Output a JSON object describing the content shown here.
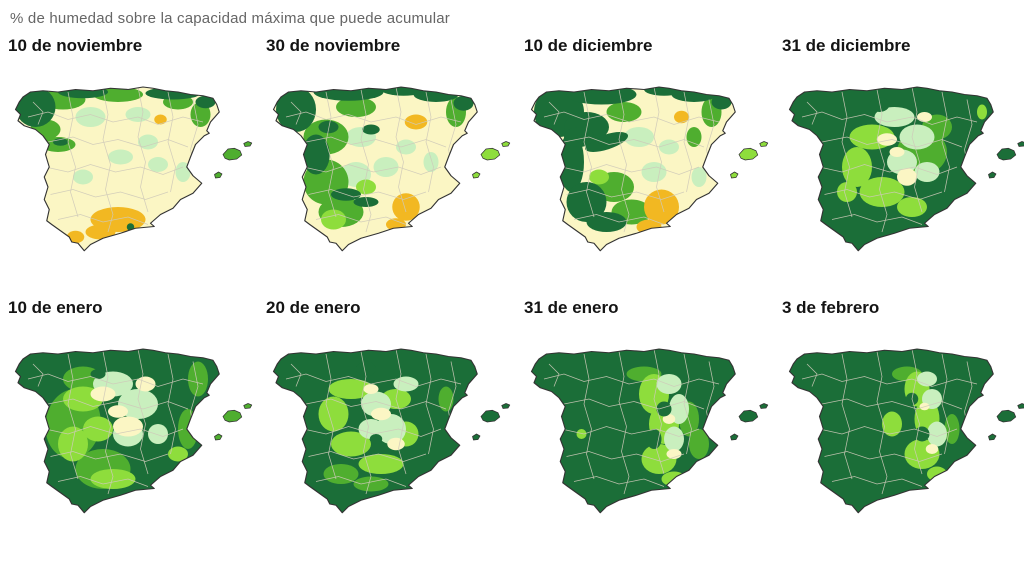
{
  "title": "% de humedad sobre la capacidad máxima que puede acumular",
  "palette": {
    "d": "#1b6e38",
    "g": "#4fae2f",
    "b": "#8edd3c",
    "m": "#c9efbe",
    "y": "#fbf6c4",
    "o": "#f2b822",
    "coast_outline": "#333333",
    "province_border": "#cfcaba",
    "ocean": "#ffffff",
    "title_color": "#666666",
    "label_color": "#141414"
  },
  "legend_note": "d=saturado (verde oscuro), g=alto, b=medio-alto, m=medio, y=bajo, o=muy seco",
  "maps": [
    {
      "label": "10 de noviembre",
      "base": "y",
      "islands": "g",
      "blobs": [
        [
          "m",
          33,
          22,
          6,
          4
        ],
        [
          "m",
          52,
          21,
          5,
          3
        ],
        [
          "m",
          45,
          38,
          5,
          3
        ],
        [
          "m",
          60,
          41,
          4,
          3
        ],
        [
          "m",
          30,
          46,
          4,
          3
        ],
        [
          "m",
          70,
          44,
          3,
          4
        ],
        [
          "m",
          56,
          32,
          4,
          3
        ],
        [
          "g",
          22,
          15,
          9,
          4
        ],
        [
          "g",
          15,
          27,
          6,
          4
        ],
        [
          "g",
          44,
          13,
          10,
          3
        ],
        [
          "g",
          20,
          33,
          7,
          3
        ],
        [
          "g",
          77,
          21,
          4,
          5
        ],
        [
          "g",
          68,
          16,
          6,
          3
        ],
        [
          "d",
          11,
          18,
          8,
          8
        ],
        [
          "d",
          30,
          12,
          10,
          2.5
        ],
        [
          "d",
          66,
          12.5,
          11,
          2.5
        ],
        [
          "d",
          79,
          16,
          4,
          2.5
        ],
        [
          "d",
          21,
          32,
          3,
          1.5
        ],
        [
          "o",
          61,
          23,
          2.5,
          2
        ],
        [
          "o",
          44,
          63,
          11,
          5
        ],
        [
          "o",
          37,
          68,
          6,
          3
        ],
        [
          "o",
          27,
          70,
          3.5,
          2.5
        ],
        [
          "d",
          49,
          66,
          1.5,
          1.5
        ]
      ]
    },
    {
      "label": "30 de noviembre",
      "base": "y",
      "islands": "b",
      "blobs": [
        [
          "m",
          38,
          30,
          6,
          4
        ],
        [
          "m",
          48,
          42,
          5,
          4
        ],
        [
          "m",
          36,
          45,
          6,
          5
        ],
        [
          "m",
          56,
          34,
          4,
          3
        ],
        [
          "m",
          66,
          40,
          3,
          4
        ],
        [
          "g",
          24,
          30,
          9,
          7
        ],
        [
          "g",
          24,
          48,
          9,
          9
        ],
        [
          "g",
          30,
          60,
          9,
          6
        ],
        [
          "g",
          36,
          18,
          8,
          4
        ],
        [
          "g",
          76,
          20,
          4,
          6
        ],
        [
          "b",
          27,
          63,
          5,
          4
        ],
        [
          "b",
          40,
          50,
          4,
          3
        ],
        [
          "d",
          12,
          19,
          8,
          9
        ],
        [
          "d",
          33,
          12,
          14,
          3.5
        ],
        [
          "d",
          55,
          11,
          9,
          2.5
        ],
        [
          "d",
          68,
          13,
          9,
          3
        ],
        [
          "d",
          79,
          16.5,
          4,
          3
        ],
        [
          "d",
          20,
          37,
          5.5,
          8
        ],
        [
          "d",
          32,
          53,
          6,
          2.5
        ],
        [
          "d",
          40,
          56,
          5,
          2
        ],
        [
          "d",
          42,
          27,
          3.5,
          2
        ],
        [
          "d",
          25,
          26,
          4,
          2.5
        ],
        [
          "o",
          60,
          24,
          4.5,
          3
        ],
        [
          "o",
          56,
          58,
          5.5,
          5.5
        ],
        [
          "o",
          52,
          65,
          4,
          2.5
        ]
      ]
    },
    {
      "label": "10 de diciembre",
      "base": "y",
      "islands": "b",
      "blobs": [
        [
          "m",
          46,
          30,
          6,
          4
        ],
        [
          "m",
          52,
          44,
          5,
          4
        ],
        [
          "m",
          58,
          34,
          4,
          3
        ],
        [
          "m",
          70,
          46,
          3,
          4
        ],
        [
          "g",
          40,
          20,
          7,
          4
        ],
        [
          "g",
          36,
          50,
          8,
          6
        ],
        [
          "g",
          43,
          60,
          8,
          5
        ],
        [
          "g",
          75,
          20,
          4,
          6
        ],
        [
          "g",
          68,
          30,
          3,
          4
        ],
        [
          "b",
          30,
          46,
          4,
          3
        ],
        [
          "d",
          14,
          20,
          10,
          10
        ],
        [
          "d",
          31,
          13,
          14,
          4
        ],
        [
          "d",
          56,
          11,
          8,
          2.5
        ],
        [
          "d",
          68,
          13,
          9,
          3
        ],
        [
          "d",
          79,
          16,
          4,
          3
        ],
        [
          "d",
          25,
          26,
          9,
          6
        ],
        [
          "d",
          19,
          40,
          5,
          12
        ],
        [
          "d",
          33,
          32,
          9,
          3,
          -18
        ],
        [
          "d",
          25,
          56,
          8,
          8
        ],
        [
          "d",
          33,
          64,
          8,
          4
        ],
        [
          "d",
          22,
          30,
          6,
          4
        ],
        [
          "o",
          55,
          58,
          7,
          7
        ],
        [
          "o",
          50,
          66,
          5,
          3
        ],
        [
          "o",
          63,
          22,
          3,
          2.5
        ]
      ]
    },
    {
      "label": "31 de diciembre",
      "base": "d",
      "islands": "d",
      "blobs": [
        [
          "g",
          56,
          36,
          10,
          9
        ],
        [
          "g",
          62,
          26,
          6,
          5
        ],
        [
          "b",
          36,
          30,
          9,
          5
        ],
        [
          "b",
          30,
          42,
          6,
          8
        ],
        [
          "b",
          40,
          52,
          9,
          6
        ],
        [
          "b",
          52,
          58,
          6,
          4
        ],
        [
          "b",
          26,
          52,
          4,
          4
        ],
        [
          "b",
          80,
          20,
          2,
          3
        ],
        [
          "m",
          45,
          22,
          8,
          4
        ],
        [
          "d",
          39,
          17,
          4,
          3
        ],
        [
          "m",
          54,
          30,
          7,
          5
        ],
        [
          "m",
          48,
          40,
          6,
          5
        ],
        [
          "m",
          58,
          44,
          5,
          4
        ],
        [
          "y",
          42,
          31,
          4,
          2.5
        ],
        [
          "y",
          50,
          46,
          4,
          3.5
        ],
        [
          "y",
          57,
          22,
          3,
          2
        ],
        [
          "y",
          46,
          36,
          3,
          2
        ]
      ]
    },
    {
      "label": "10 de enero",
      "base": "d",
      "islands": "g",
      "blobs": [
        [
          "g",
          26,
          40,
          11,
          14,
          8
        ],
        [
          "g",
          38,
          58,
          11,
          8
        ],
        [
          "g",
          30,
          22,
          8,
          5
        ],
        [
          "g",
          72,
          42,
          4,
          8
        ],
        [
          "g",
          76,
          22,
          4,
          7
        ],
        [
          "b",
          30,
          30,
          8,
          5
        ],
        [
          "b",
          26,
          48,
          6,
          7
        ],
        [
          "b",
          42,
          62,
          9,
          4
        ],
        [
          "b",
          36,
          42,
          6,
          5
        ],
        [
          "b",
          68,
          52,
          4,
          3
        ],
        [
          "m",
          42,
          24,
          8,
          5
        ],
        [
          "m",
          52,
          32,
          8,
          6
        ],
        [
          "m",
          48,
          44,
          6,
          5
        ],
        [
          "m",
          60,
          44,
          4,
          4
        ],
        [
          "y",
          38,
          28,
          5,
          3
        ],
        [
          "y",
          48,
          41,
          6,
          4
        ],
        [
          "y",
          55,
          24,
          4,
          3
        ],
        [
          "y",
          44,
          35,
          4,
          2.5
        ],
        [
          "d",
          36,
          20,
          3,
          2
        ]
      ]
    },
    {
      "label": "20 de enero",
      "base": "d",
      "islands": "d",
      "blobs": [
        [
          "g",
          30,
          60,
          7,
          4
        ],
        [
          "g",
          42,
          64,
          7,
          3
        ],
        [
          "g",
          72,
          30,
          3,
          5
        ],
        [
          "b",
          34,
          26,
          9,
          4
        ],
        [
          "b",
          27,
          36,
          6,
          7
        ],
        [
          "b",
          34,
          48,
          8,
          5
        ],
        [
          "b",
          46,
          56,
          9,
          4
        ],
        [
          "b",
          52,
          30,
          6,
          4
        ],
        [
          "b",
          56,
          44,
          5,
          5
        ],
        [
          "m",
          44,
          32,
          6,
          5
        ],
        [
          "m",
          50,
          42,
          6,
          6
        ],
        [
          "m",
          42,
          42,
          5,
          4
        ],
        [
          "m",
          56,
          24,
          5,
          3
        ],
        [
          "y",
          46,
          36,
          4,
          2.5
        ],
        [
          "y",
          52,
          48,
          3.5,
          2.5
        ],
        [
          "y",
          42,
          26,
          3,
          2
        ],
        [
          "d",
          40,
          18,
          4,
          3
        ],
        [
          "d",
          44,
          46,
          2.5,
          2
        ]
      ]
    },
    {
      "label": "31 de enero",
      "base": "d",
      "islands": "d",
      "blobs": [
        [
          "g",
          48,
          20,
          7,
          3
        ],
        [
          "g",
          66,
          38,
          4,
          7
        ],
        [
          "g",
          70,
          48,
          4,
          6
        ],
        [
          "b",
          52,
          28,
          6,
          8
        ],
        [
          "b",
          56,
          40,
          6,
          8
        ],
        [
          "b",
          54,
          54,
          7,
          6
        ],
        [
          "b",
          60,
          62,
          5,
          3
        ],
        [
          "b",
          23,
          44,
          2,
          2
        ],
        [
          "m",
          58,
          24,
          5,
          4
        ],
        [
          "m",
          62,
          34,
          4,
          6
        ],
        [
          "m",
          60,
          46,
          4,
          5
        ],
        [
          "y",
          58,
          38,
          2.5,
          2
        ],
        [
          "y",
          60,
          52,
          3,
          2
        ],
        [
          "d",
          56,
          34,
          3,
          3
        ],
        [
          "d",
          52,
          46,
          3,
          4
        ]
      ]
    },
    {
      "label": "3 de febrero",
      "base": "d",
      "islands": "d",
      "blobs": [
        [
          "g",
          50,
          20,
          6,
          3
        ],
        [
          "g",
          68,
          42,
          3,
          6
        ],
        [
          "b",
          54,
          26,
          5,
          7
        ],
        [
          "b",
          58,
          38,
          5,
          8
        ],
        [
          "b",
          56,
          52,
          7,
          6
        ],
        [
          "b",
          62,
          60,
          4,
          3
        ],
        [
          "b",
          44,
          40,
          4,
          5
        ],
        [
          "m",
          60,
          30,
          4,
          4
        ],
        [
          "m",
          62,
          44,
          4,
          5
        ],
        [
          "m",
          58,
          22,
          4,
          3
        ],
        [
          "y",
          60,
          50,
          2.5,
          2
        ],
        [
          "y",
          57,
          33,
          2,
          1.5
        ],
        [
          "d",
          56,
          44,
          3,
          3
        ],
        [
          "d",
          52,
          30,
          2.5,
          2.5
        ]
      ]
    }
  ]
}
